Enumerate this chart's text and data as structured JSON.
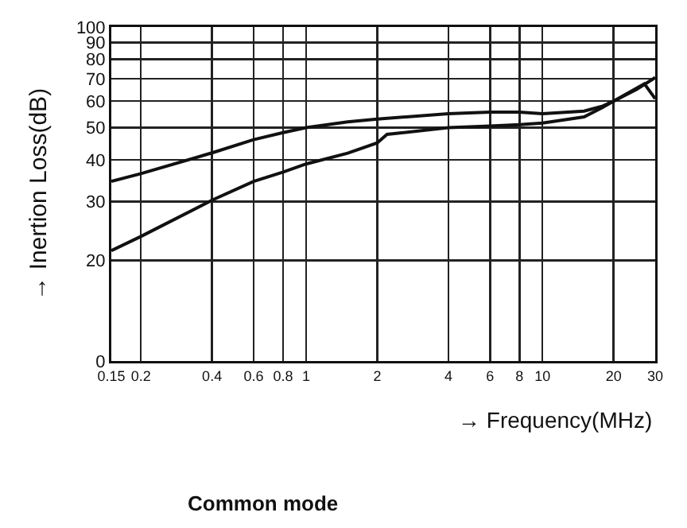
{
  "chart_data": {
    "type": "line",
    "title": "Common mode",
    "xlabel": "→ Frequency(MHz)",
    "ylabel": "→ Inertion Loss(dB)",
    "log": "xy",
    "grid": true,
    "marker": "none",
    "line_style": "solid",
    "xlim": [
      0.15,
      30
    ],
    "xticks": [
      0.15,
      0.2,
      0.4,
      0.6,
      0.8,
      1,
      2,
      4,
      6,
      8,
      10,
      20,
      30
    ],
    "ylim": [
      0,
      100
    ],
    "yticks": [
      0,
      20,
      30,
      40,
      50,
      60,
      70,
      80,
      90,
      100
    ],
    "series": [
      {
        "color": "#111111",
        "x": [
          0.15,
          0.2,
          0.4,
          0.6,
          0.8,
          1,
          1.5,
          2,
          4,
          6,
          8,
          10,
          15,
          18,
          20,
          25,
          30
        ],
        "values": [
          34.5,
          36.4,
          42,
          46,
          48.3,
          50,
          52,
          53,
          55,
          55.6,
          55.6,
          55,
          56,
          58,
          60,
          65,
          70.6
        ]
      },
      {
        "color": "#111111",
        "x": [
          0.15,
          0.2,
          0.4,
          0.6,
          0.8,
          1,
          1.5,
          2,
          2.2,
          4,
          6,
          8,
          10,
          15,
          18,
          20,
          27,
          30
        ],
        "values": [
          21.4,
          23.6,
          30.3,
          34.5,
          36.8,
          38.9,
          41.9,
          45,
          47.7,
          50,
          50.5,
          51,
          51.6,
          53.8,
          57.5,
          60,
          67.6,
          61
        ]
      }
    ]
  }
}
